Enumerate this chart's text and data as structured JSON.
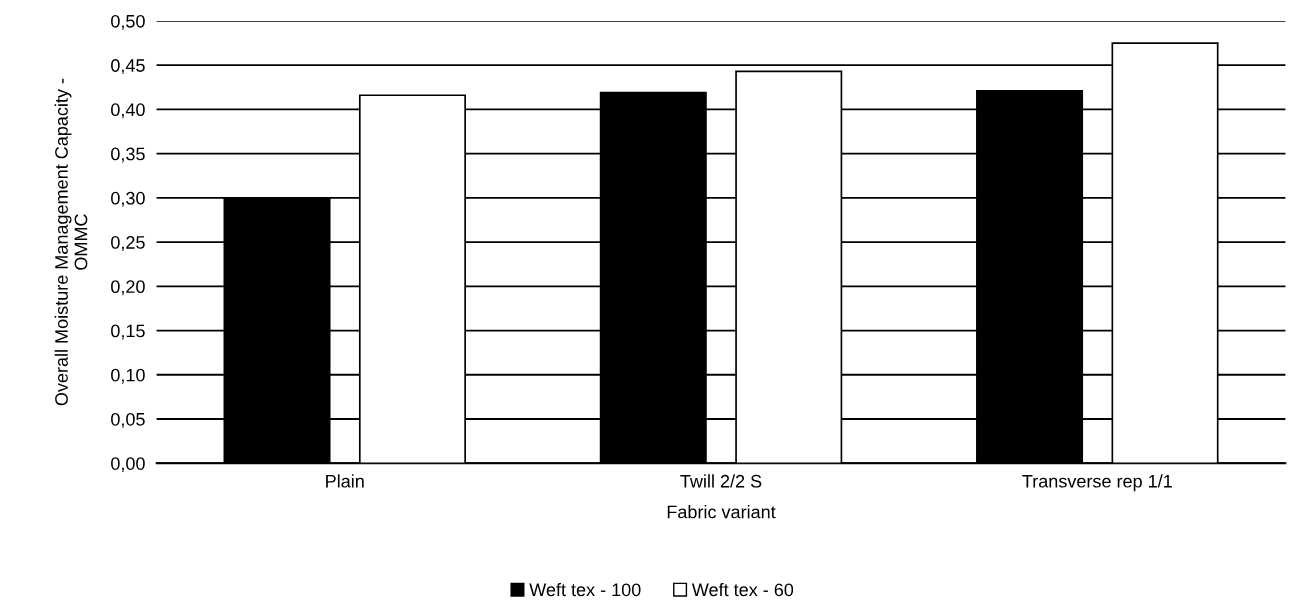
{
  "chart_data": {
    "type": "bar",
    "xlabel": "Fabric variant",
    "ylabel": "Overall Moisture Management Capacity -\nOMMC",
    "categories": [
      "Plain",
      "Twill 2/2 S",
      "Transverse rep 1/1"
    ],
    "series": [
      {
        "name": "Weft tex - 100",
        "color": "#000000",
        "values": [
          0.3,
          0.419,
          0.421
        ]
      },
      {
        "name": "Weft tex - 60",
        "color": "#ffffff",
        "values": [
          0.416,
          0.443,
          0.475
        ]
      }
    ],
    "ylim": [
      0,
      0.5
    ],
    "yticks": [
      {
        "value": 0,
        "label": "0,00"
      },
      {
        "value": 0.05,
        "label": "0,05"
      },
      {
        "value": 0.1,
        "label": "0,10"
      },
      {
        "value": 0.15,
        "label": "0,15"
      },
      {
        "value": 0.2,
        "label": "0,20"
      },
      {
        "value": 0.25,
        "label": "0,25"
      },
      {
        "value": 0.3,
        "label": "0,30"
      },
      {
        "value": 0.35,
        "label": "0,35"
      },
      {
        "value": 0.4,
        "label": "0,40"
      },
      {
        "value": 0.45,
        "label": "0,45"
      },
      {
        "value": 0.5,
        "label": "0,50"
      }
    ],
    "grid": "y",
    "legend": "bottom"
  }
}
